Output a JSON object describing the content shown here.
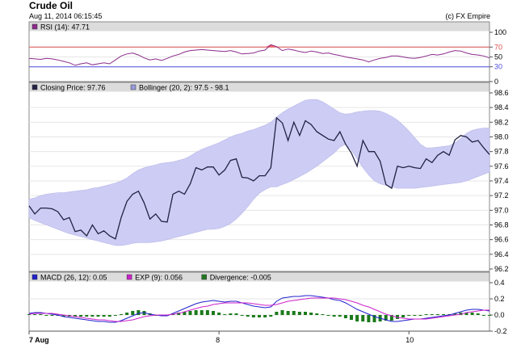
{
  "header": {
    "title": "Crude Oil",
    "timestamp": "Aug 11, 2014 06:15:45",
    "credit": "(c) FX Empire"
  },
  "chart_data": [
    {
      "type": "line",
      "panel": "rsi",
      "legend": [
        {
          "key": "rsi",
          "label": "RSI (14): 47.71",
          "color": "#8b2b8b"
        }
      ],
      "ylim": [
        0,
        100
      ],
      "yticks": [
        "100",
        "70",
        "50",
        "30",
        "0"
      ],
      "ytick_values": [
        100,
        70,
        50,
        30,
        0
      ],
      "ytick_colors": [
        "#000000",
        "#e05050",
        "#000000",
        "#5050e0",
        "#000000"
      ],
      "overbought": 70,
      "oversold": 30,
      "values": [
        47,
        46,
        45,
        47,
        46,
        44,
        41,
        38,
        33,
        36,
        38,
        34,
        36,
        38,
        36,
        44,
        52,
        56,
        58,
        54,
        48,
        44,
        46,
        43,
        47,
        52,
        55,
        60,
        63,
        64,
        65,
        64,
        63,
        62,
        61,
        63,
        60,
        56,
        57,
        58,
        62,
        64,
        75,
        71,
        63,
        66,
        64,
        61,
        59,
        62,
        60,
        57,
        58,
        55,
        53,
        50,
        48,
        46,
        44,
        40,
        44,
        47,
        49,
        52,
        52,
        50,
        48,
        47,
        49,
        52,
        55,
        54,
        56,
        60,
        63,
        62,
        58,
        55,
        54,
        52,
        48
      ]
    },
    {
      "type": "line",
      "panel": "price",
      "legend": [
        {
          "key": "close",
          "label": "Closing Price: 97.76",
          "color": "#222244"
        },
        {
          "key": "boll",
          "label": "Bollinger (20, 2): 97.5 - 98.1",
          "color": "#9999dd"
        }
      ],
      "ylim": [
        96.2,
        98.6
      ],
      "yticks": [
        "98.6",
        "98.4",
        "98.2",
        "98.0",
        "97.8",
        "97.6",
        "97.4",
        "97.2",
        "97.0",
        "96.8",
        "96.6",
        "96.4",
        "96.2"
      ],
      "ytick_values": [
        98.6,
        98.4,
        98.2,
        98.0,
        97.8,
        97.6,
        97.4,
        97.2,
        97.0,
        96.8,
        96.6,
        96.4,
        96.2
      ],
      "close": [
        97.06,
        96.95,
        97.03,
        97.03,
        97.02,
        96.98,
        96.87,
        96.9,
        96.71,
        96.73,
        96.65,
        96.8,
        96.68,
        96.72,
        96.65,
        96.61,
        96.9,
        97.12,
        97.22,
        97.26,
        97.1,
        96.88,
        96.95,
        96.85,
        96.84,
        97.22,
        97.26,
        97.22,
        97.36,
        97.58,
        97.55,
        97.59,
        97.59,
        97.48,
        97.55,
        97.68,
        97.7,
        97.45,
        97.44,
        97.4,
        97.47,
        97.47,
        97.58,
        98.26,
        98.19,
        97.95,
        98.2,
        98.02,
        98.22,
        98.17,
        98.07,
        98.02,
        97.97,
        97.95,
        98.07,
        97.9,
        97.78,
        97.6,
        97.95,
        97.8,
        97.8,
        97.67,
        97.35,
        97.3,
        97.6,
        97.58,
        97.6,
        97.58,
        97.57,
        97.7,
        97.65,
        97.75,
        97.8,
        97.75,
        97.96,
        98.02,
        98.0,
        97.93,
        97.95,
        97.85,
        97.76
      ],
      "boll_upper": [
        97.15,
        97.17,
        97.2,
        97.22,
        97.23,
        97.24,
        97.24,
        97.25,
        97.26,
        97.27,
        97.28,
        97.3,
        97.31,
        97.33,
        97.35,
        97.37,
        97.4,
        97.44,
        97.5,
        97.55,
        97.58,
        97.6,
        97.62,
        97.64,
        97.65,
        97.66,
        97.68,
        97.7,
        97.74,
        97.79,
        97.83,
        97.86,
        97.89,
        97.92,
        97.96,
        98.0,
        98.03,
        98.05,
        98.08,
        98.1,
        98.13,
        98.16,
        98.2,
        98.27,
        98.33,
        98.38,
        98.42,
        98.46,
        98.5,
        98.51,
        98.51,
        98.48,
        98.43,
        98.38,
        98.33,
        98.31,
        98.32,
        98.34,
        98.35,
        98.36,
        98.36,
        98.35,
        98.32,
        98.28,
        98.23,
        98.16,
        98.08,
        97.99,
        97.9,
        97.85,
        97.85,
        97.86,
        97.87,
        97.88,
        97.92,
        97.98,
        98.05,
        98.09,
        98.11,
        98.12,
        98.12
      ],
      "boll_lower": [
        96.9,
        96.86,
        96.83,
        96.8,
        96.77,
        96.74,
        96.71,
        96.68,
        96.66,
        96.64,
        96.62,
        96.6,
        96.58,
        96.56,
        96.54,
        96.52,
        96.52,
        96.53,
        96.55,
        96.56,
        96.56,
        96.56,
        96.57,
        96.58,
        96.6,
        96.62,
        96.64,
        96.66,
        96.68,
        96.7,
        96.72,
        96.74,
        96.74,
        96.75,
        96.78,
        96.82,
        96.88,
        96.96,
        97.05,
        97.15,
        97.23,
        97.28,
        97.32,
        97.32,
        97.35,
        97.38,
        97.42,
        97.46,
        97.5,
        97.55,
        97.6,
        97.66,
        97.72,
        97.78,
        97.86,
        97.9,
        97.82,
        97.7,
        97.58,
        97.48,
        97.4,
        97.36,
        97.34,
        97.32,
        97.3,
        97.3,
        97.3,
        97.3,
        97.31,
        97.32,
        97.33,
        97.34,
        97.35,
        97.36,
        97.37,
        97.38,
        97.4,
        97.43,
        97.46,
        97.49,
        97.52
      ]
    },
    {
      "type": "line",
      "panel": "macd",
      "legend": [
        {
          "key": "macd",
          "label": "MACD (26, 12): 0.05",
          "color": "#2020cc"
        },
        {
          "key": "exp",
          "label": "EXP (9): 0.056",
          "color": "#cc22cc"
        },
        {
          "key": "div",
          "label": "Divergence: -0.005",
          "color": "#227722"
        }
      ],
      "ylim": [
        -0.2,
        0.4
      ],
      "yticks": [
        "0.4",
        "0.2",
        "0.0",
        "-0.2"
      ],
      "ytick_values": [
        0.4,
        0.2,
        0.0,
        -0.2
      ],
      "macd": [
        0.02,
        0.03,
        0.03,
        0.02,
        0.01,
        0.0,
        -0.02,
        -0.03,
        -0.04,
        -0.05,
        -0.06,
        -0.07,
        -0.08,
        -0.08,
        -0.09,
        -0.09,
        -0.07,
        -0.04,
        -0.01,
        0.02,
        0.03,
        0.01,
        0.0,
        -0.01,
        -0.01,
        0.02,
        0.05,
        0.08,
        0.11,
        0.14,
        0.16,
        0.17,
        0.18,
        0.17,
        0.16,
        0.17,
        0.17,
        0.15,
        0.13,
        0.11,
        0.1,
        0.09,
        0.1,
        0.17,
        0.21,
        0.22,
        0.23,
        0.23,
        0.24,
        0.24,
        0.23,
        0.22,
        0.21,
        0.19,
        0.18,
        0.15,
        0.11,
        0.07,
        0.04,
        0.01,
        -0.02,
        -0.04,
        -0.06,
        -0.08,
        -0.08,
        -0.07,
        -0.06,
        -0.05,
        -0.05,
        -0.04,
        -0.03,
        -0.02,
        -0.01,
        0.0,
        0.02,
        0.04,
        0.06,
        0.07,
        0.07,
        0.06,
        0.05
      ],
      "exp": [
        0.01,
        0.02,
        0.02,
        0.02,
        0.02,
        0.01,
        0.0,
        -0.01,
        -0.02,
        -0.03,
        -0.04,
        -0.05,
        -0.06,
        -0.06,
        -0.07,
        -0.08,
        -0.08,
        -0.07,
        -0.06,
        -0.04,
        -0.02,
        -0.01,
        0.0,
        0.0,
        0.0,
        0.01,
        0.02,
        0.04,
        0.06,
        0.08,
        0.1,
        0.11,
        0.13,
        0.14,
        0.15,
        0.15,
        0.15,
        0.15,
        0.15,
        0.14,
        0.13,
        0.12,
        0.12,
        0.13,
        0.15,
        0.17,
        0.18,
        0.19,
        0.2,
        0.21,
        0.21,
        0.21,
        0.21,
        0.21,
        0.2,
        0.19,
        0.17,
        0.15,
        0.12,
        0.1,
        0.07,
        0.04,
        0.01,
        -0.01,
        -0.03,
        -0.04,
        -0.05,
        -0.05,
        -0.05,
        -0.05,
        -0.04,
        -0.03,
        -0.02,
        -0.01,
        0.0,
        0.01,
        0.03,
        0.04,
        0.05,
        0.06,
        0.06
      ],
      "divergence": [
        0.01,
        0.01,
        0.01,
        0.0,
        -0.01,
        -0.01,
        -0.02,
        -0.02,
        -0.02,
        -0.02,
        -0.02,
        -0.02,
        -0.02,
        -0.02,
        -0.02,
        -0.01,
        0.01,
        0.03,
        0.05,
        0.06,
        0.05,
        0.02,
        0.0,
        -0.01,
        -0.01,
        0.01,
        0.03,
        0.04,
        0.05,
        0.06,
        0.06,
        0.06,
        0.05,
        0.03,
        0.01,
        0.02,
        0.02,
        0.0,
        -0.02,
        -0.03,
        -0.03,
        -0.03,
        -0.02,
        0.04,
        0.06,
        0.05,
        0.05,
        0.04,
        0.04,
        0.03,
        0.02,
        0.01,
        0.0,
        -0.02,
        -0.02,
        -0.04,
        -0.06,
        -0.08,
        -0.08,
        -0.09,
        -0.09,
        -0.08,
        -0.07,
        -0.07,
        -0.05,
        -0.03,
        -0.01,
        0.0,
        0.0,
        0.01,
        0.01,
        0.01,
        0.01,
        0.01,
        0.02,
        0.03,
        0.03,
        0.03,
        0.02,
        0.0,
        -0.01
      ]
    }
  ],
  "x_axis": {
    "ticks": [
      {
        "label": "7 Aug",
        "index": 0,
        "bold": true
      },
      {
        "label": "8",
        "index": 33,
        "bold": false
      },
      {
        "label": "10",
        "index": 66,
        "bold": false
      }
    ]
  }
}
